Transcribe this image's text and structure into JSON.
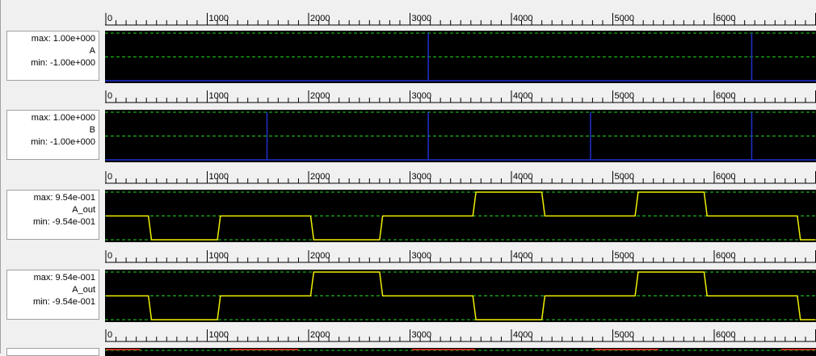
{
  "ruler": {
    "ticks": [
      "0",
      "1000",
      "2000",
      "3000",
      "4000",
      "5000",
      "6000"
    ],
    "x_start": 0,
    "x_end": 7000
  },
  "panels": [
    {
      "id": "A",
      "max_label": "max: 1.00e+000",
      "name": "A",
      "min_label": "min: -1.00e+000",
      "trace_color": "#2030d0",
      "ymax": 1.0,
      "ymin": -1.0,
      "type": "impulse",
      "impulses": [
        3180,
        6370
      ]
    },
    {
      "id": "B",
      "max_label": "max: 1.00e+000",
      "name": "B",
      "min_label": "min: -1.00e+000",
      "trace_color": "#2030d0",
      "ymax": 1.0,
      "ymin": -1.0,
      "type": "impulse",
      "impulses": [
        1590,
        3180,
        4780,
        6370
      ]
    },
    {
      "id": "A_out_1",
      "max_label": "max: 9.54e-001",
      "name": "A_out",
      "min_label": "min: -9.54e-001",
      "trace_color": "#f0f000",
      "ymax": 0.954,
      "ymin": -0.954,
      "type": "line",
      "points": [
        [
          0,
          0
        ],
        [
          420,
          0
        ],
        [
          450,
          -0.954
        ],
        [
          1100,
          -0.954
        ],
        [
          1130,
          0
        ],
        [
          2020,
          0
        ],
        [
          2050,
          -0.954
        ],
        [
          2700,
          -0.954
        ],
        [
          2730,
          0
        ],
        [
          3620,
          0
        ],
        [
          3650,
          0.954
        ],
        [
          4300,
          0.954
        ],
        [
          4330,
          0
        ],
        [
          5220,
          0
        ],
        [
          5250,
          0.954
        ],
        [
          5900,
          0.954
        ],
        [
          5930,
          0
        ],
        [
          6820,
          0
        ],
        [
          6850,
          -0.954
        ],
        [
          7000,
          -0.954
        ]
      ]
    },
    {
      "id": "A_out_2",
      "max_label": "max: 9.54e-001",
      "name": "A_out",
      "min_label": "min: -9.54e-001",
      "trace_color": "#f0f000",
      "ymax": 0.954,
      "ymin": -0.954,
      "type": "line",
      "points": [
        [
          0,
          0
        ],
        [
          420,
          0
        ],
        [
          450,
          -0.954
        ],
        [
          1100,
          -0.954
        ],
        [
          1130,
          0
        ],
        [
          2020,
          0
        ],
        [
          2050,
          0.954
        ],
        [
          2700,
          0.954
        ],
        [
          2730,
          0
        ],
        [
          3620,
          0
        ],
        [
          3650,
          -0.954
        ],
        [
          4300,
          -0.954
        ],
        [
          4330,
          0
        ],
        [
          5220,
          0
        ],
        [
          5250,
          0.954
        ],
        [
          5900,
          0.954
        ],
        [
          5930,
          0
        ],
        [
          6820,
          0
        ],
        [
          6850,
          -0.954
        ],
        [
          7000,
          -0.954
        ]
      ]
    }
  ],
  "colors": {
    "grid": "#20d020",
    "background": "#000000",
    "partial_trace": "#c03020"
  }
}
